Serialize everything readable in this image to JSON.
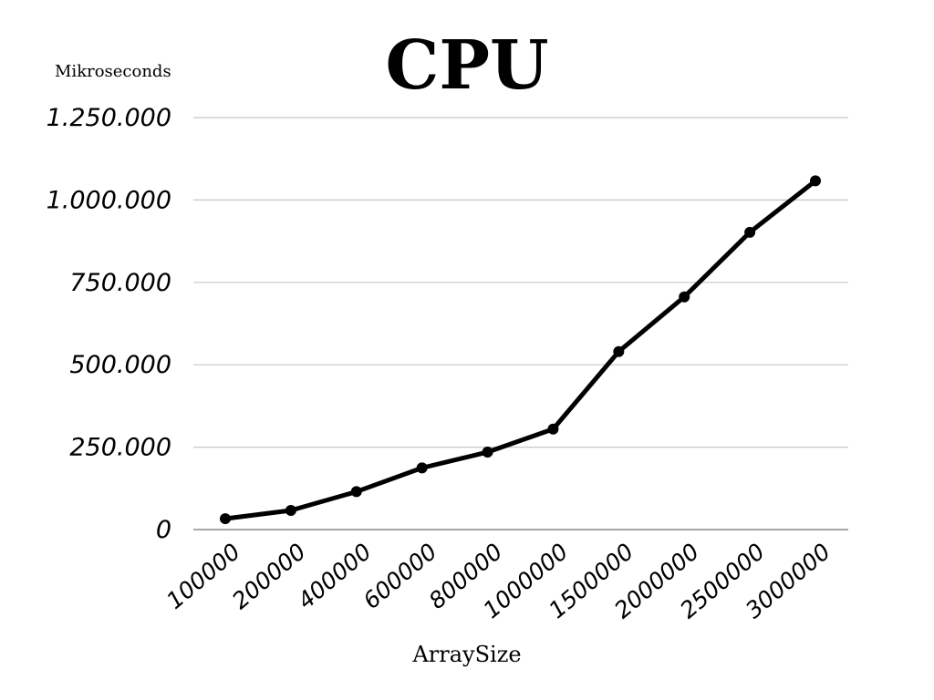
{
  "chart_data": {
    "type": "line",
    "title": "CPU",
    "xlabel": "ArraySize",
    "ylabel": "Mikroseconds",
    "categories": [
      "100000",
      "200000",
      "400000",
      "600000",
      "800000",
      "1000000",
      "1500000",
      "2000000",
      "2500000",
      "3000000"
    ],
    "series": [
      {
        "values": [
          33000,
          58000,
          115000,
          187000,
          235000,
          305000,
          540000,
          706000,
          902000,
          1058000
        ],
        "color": "#000000"
      }
    ],
    "ylim": [
      0,
      1250000
    ],
    "yticks": [
      0,
      250000,
      500000,
      750000,
      1000000,
      1250000
    ],
    "ytick_labels": [
      "0",
      "250.000",
      "500.000",
      "750.000",
      "1.000.000",
      "1.250.000"
    ],
    "grid": true,
    "legend": "none"
  }
}
